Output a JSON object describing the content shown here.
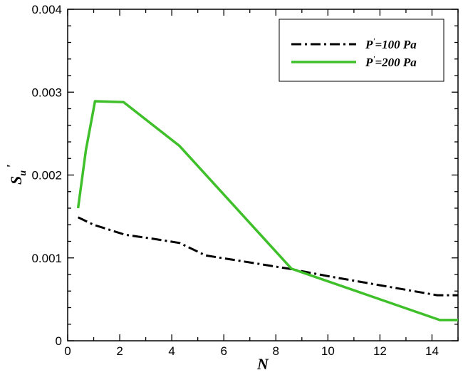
{
  "chart_data": {
    "type": "line",
    "title": "",
    "xlabel": "N",
    "ylabel": "S'u",
    "ylabel_main": "S",
    "ylabel_sub": "u",
    "ylabel_prime": "'",
    "xlim": [
      0,
      15
    ],
    "ylim": [
      0,
      0.004
    ],
    "x_ticks": [
      0,
      2,
      4,
      6,
      8,
      10,
      12,
      14
    ],
    "x_tick_labels": [
      "0",
      "2",
      "4",
      "6",
      "8",
      "10",
      "12",
      "14"
    ],
    "y_ticks": [
      0,
      0.001,
      0.002,
      0.003,
      0.004
    ],
    "y_tick_labels": [
      "0",
      "0.001",
      "0.002",
      "0.003",
      "0.004"
    ],
    "grid": false,
    "legend_position": "top-right",
    "series": [
      {
        "name": "P'=100 Pa",
        "name_main": "P",
        "name_prime": "'",
        "name_rest": "=100 Pa",
        "color": "#000000",
        "style": "dash-dot",
        "x": [
          0.4,
          1.0,
          2.2,
          3.3,
          4.3,
          5.3,
          6.5,
          8.5,
          10,
          12,
          14.2,
          15
        ],
        "y": [
          0.00149,
          0.0014,
          0.00128,
          0.00123,
          0.00118,
          0.00103,
          0.00097,
          0.00087,
          0.00078,
          0.00067,
          0.00055,
          0.00055
        ]
      },
      {
        "name": "P'=200 Pa",
        "name_main": "P",
        "name_prime": "'",
        "name_rest": "=200 Pa",
        "color": "#3fc02b",
        "style": "solid",
        "x": [
          0.4,
          0.7,
          1.05,
          2.15,
          4.3,
          8.6,
          14.3,
          15
        ],
        "y": [
          0.0016,
          0.0023,
          0.00289,
          0.00288,
          0.00235,
          0.00087,
          0.00025,
          0.00025
        ]
      }
    ]
  }
}
